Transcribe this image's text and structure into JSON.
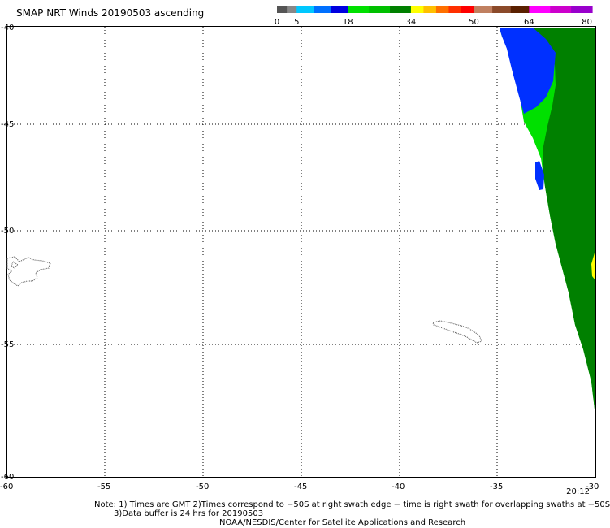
{
  "title": "SMAP NRT Winds 20190503 ascending",
  "colorbar": {
    "labels": [
      "0",
      "5",
      "18",
      "34",
      "50",
      "64",
      "80"
    ],
    "bands": [
      {
        "from": 0,
        "to": 5,
        "colors": [
          "#555555",
          "#888888"
        ]
      },
      {
        "from": 5,
        "to": 18,
        "colors": [
          "#00c8ff",
          "#0070ff",
          "#0000e0"
        ]
      },
      {
        "from": 18,
        "to": 34,
        "colors": [
          "#00e000",
          "#00c000",
          "#008000"
        ]
      },
      {
        "from": 34,
        "to": 50,
        "colors": [
          "#ffff00",
          "#ffc000",
          "#ff7000",
          "#ff3000",
          "#ff0000"
        ]
      },
      {
        "from": 50,
        "to": 64,
        "colors": [
          "#c08060",
          "#8b4a2a",
          "#5a2000"
        ]
      },
      {
        "from": 64,
        "to": 80,
        "colors": [
          "#ff00ff",
          "#cc00cc",
          "#9900cc"
        ]
      }
    ]
  },
  "map": {
    "lon_range": [
      -60,
      -30
    ],
    "lat_range": [
      -40,
      -60
    ],
    "lon_ticks": [
      "-60",
      "-55",
      "-50",
      "-45",
      "-40",
      "-35",
      "-30"
    ],
    "lat_ticks": [
      "-40",
      "-45",
      "-50",
      "-55",
      "-60"
    ],
    "colors": {
      "blue": "#0030ff",
      "light_green": "#00e000",
      "dark_green": "#008000",
      "yellow": "#ffff00",
      "coast": "#666666"
    },
    "features": [
      "wind-swath",
      "falkland-islands-coastline",
      "south-georgia-coastline"
    ]
  },
  "time_label": "20:12",
  "notes": {
    "line1": "Note: 1) Times are GMT 2)Times correspond to −50S at right swath edge − time is right swath for overlapping swaths at −50S",
    "line2": "3)Data buffer is 24 hrs for 20190503",
    "line3": "NOAA/NESDIS/Center for Satellite Applications and Research"
  }
}
